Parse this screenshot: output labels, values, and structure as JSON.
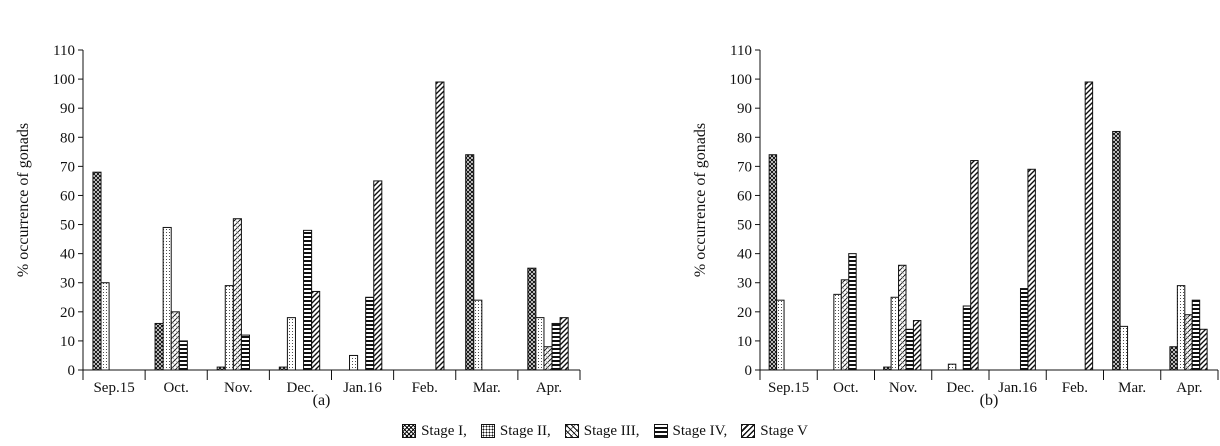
{
  "legend": {
    "items": [
      "Stage I,",
      "Stage II,",
      "Stage III,",
      "Stage IV,",
      "Stage V"
    ]
  },
  "chart_data": [
    {
      "type": "bar",
      "panel_label": "(a)",
      "ylabel": "% occurrence of gonads",
      "xlabel": "",
      "ylim": [
        0,
        110
      ],
      "yticks": [
        0,
        10,
        20,
        30,
        40,
        50,
        60,
        70,
        80,
        90,
        100,
        110
      ],
      "categories": [
        "Sep.15",
        "Oct.",
        "Nov.",
        "Dec.",
        "Jan.16",
        "Feb.",
        "Mar.",
        "Apr."
      ],
      "series": [
        {
          "name": "Stage I",
          "values": [
            68,
            16,
            1,
            1,
            0,
            0,
            74,
            35
          ]
        },
        {
          "name": "Stage II",
          "values": [
            30,
            49,
            29,
            18,
            5,
            0,
            24,
            18
          ]
        },
        {
          "name": "Stage III",
          "values": [
            0,
            20,
            52,
            0,
            0,
            0,
            0,
            8
          ]
        },
        {
          "name": "Stage IV",
          "values": [
            0,
            10,
            12,
            48,
            25,
            0,
            0,
            16
          ]
        },
        {
          "name": "Stage V",
          "values": [
            0,
            0,
            0,
            27,
            65,
            99,
            0,
            18
          ]
        }
      ]
    },
    {
      "type": "bar",
      "panel_label": "(b)",
      "ylabel": "% occurrence of gonads",
      "xlabel": "",
      "ylim": [
        0,
        110
      ],
      "yticks": [
        0,
        10,
        20,
        30,
        40,
        50,
        60,
        70,
        80,
        90,
        100,
        110
      ],
      "categories": [
        "Sep.15",
        "Oct.",
        "Nov.",
        "Dec.",
        "Jan.16",
        "Feb.",
        "Mar.",
        "Apr."
      ],
      "series": [
        {
          "name": "Stage I",
          "values": [
            74,
            0,
            1,
            0,
            0,
            0,
            82,
            8
          ]
        },
        {
          "name": "Stage II",
          "values": [
            24,
            26,
            25,
            2,
            0,
            0,
            15,
            29
          ]
        },
        {
          "name": "Stage III",
          "values": [
            0,
            31,
            36,
            0,
            0,
            0,
            0,
            19
          ]
        },
        {
          "name": "Stage IV",
          "values": [
            0,
            40,
            14,
            22,
            28,
            0,
            0,
            24
          ]
        },
        {
          "name": "Stage V",
          "values": [
            0,
            0,
            17,
            72,
            69,
            99,
            0,
            14
          ]
        }
      ]
    }
  ]
}
